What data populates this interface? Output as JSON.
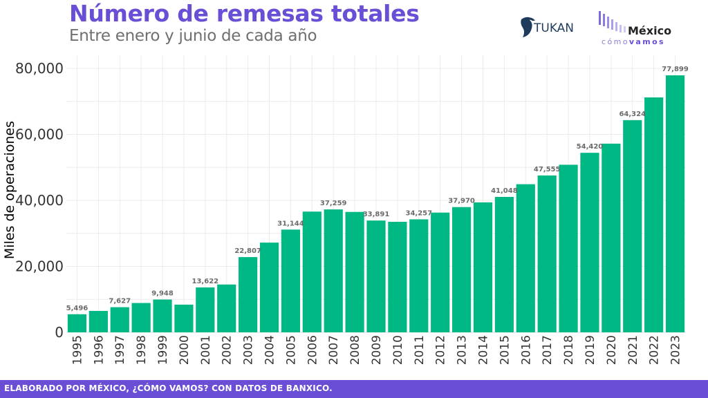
{
  "header": {
    "title": "Número de remesas totales",
    "subtitle": "Entre enero y junio de cada año"
  },
  "logos": {
    "tukan": "TUKAN",
    "mcv_top": "México",
    "mcv_bottom_1": "cómo",
    "mcv_bottom_2": "vamos"
  },
  "footer": {
    "text": "ELABORADO POR MÉXICO, ¿CÓMO VAMOS? CON DATOS DE BANXICO."
  },
  "colors": {
    "bar": "#00b884",
    "accent": "#6a4fd6"
  },
  "chart_data": {
    "type": "bar",
    "title": "Número de remesas totales",
    "subtitle": "Entre enero y junio de cada año",
    "ylabel": "Miles de operaciones",
    "xlabel": "",
    "ylim": [
      0,
      80000
    ],
    "yticks": [
      0,
      20000,
      40000,
      60000,
      80000
    ],
    "ytick_labels": [
      "0",
      "20,000",
      "40,000",
      "60,000",
      "80,000"
    ],
    "grid": true,
    "categories": [
      "1995",
      "1996",
      "1997",
      "1998",
      "1999",
      "2000",
      "2001",
      "2002",
      "2003",
      "2004",
      "2005",
      "2006",
      "2007",
      "2008",
      "2009",
      "2010",
      "2011",
      "2012",
      "2013",
      "2014",
      "2015",
      "2016",
      "2017",
      "2018",
      "2019",
      "2020",
      "2021",
      "2022",
      "2023"
    ],
    "values": [
      5496,
      6500,
      7627,
      8900,
      9948,
      8400,
      13622,
      14500,
      22807,
      27200,
      31144,
      36600,
      37259,
      36500,
      33891,
      33500,
      34257,
      36300,
      37970,
      39400,
      41048,
      44900,
      47555,
      50800,
      54420,
      57200,
      64324,
      71200,
      77899
    ],
    "data_labels": [
      "5,496",
      "",
      "7,627",
      "",
      "9,948",
      "",
      "13,622",
      "",
      "22,807",
      "",
      "31,144",
      "",
      "37,259",
      "",
      "33,891",
      "",
      "34,257",
      "",
      "37,970",
      "",
      "41,048",
      "",
      "47,555",
      "",
      "54,420",
      "",
      "64,324",
      "",
      "77,899"
    ]
  }
}
